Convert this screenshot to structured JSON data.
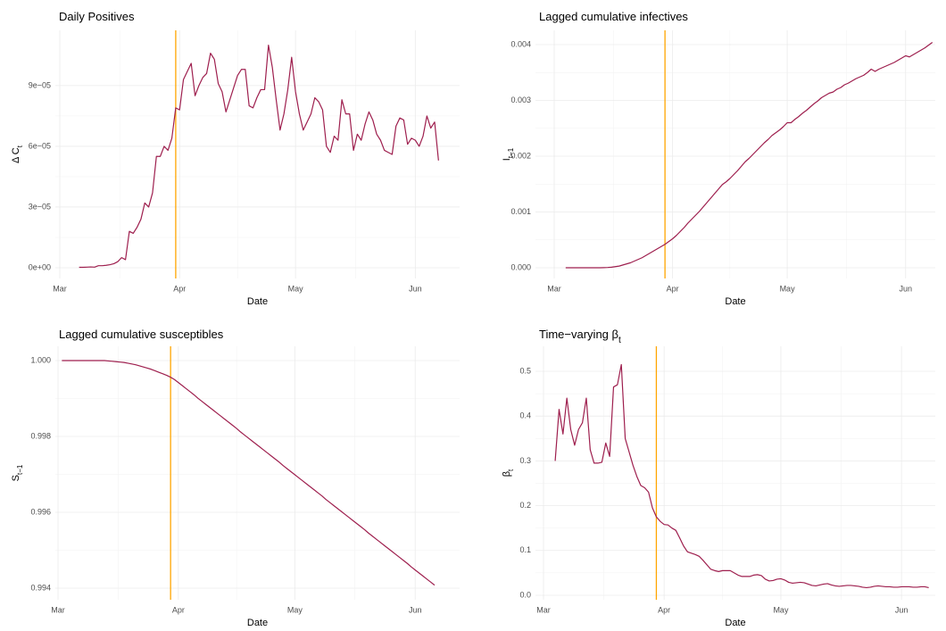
{
  "chart_data": [
    {
      "type": "line",
      "title": "Daily Positives",
      "xlabel": "Date",
      "ylabel": "Δ C",
      "ylabel_sub": "t",
      "categories": [
        "Mar",
        null,
        null,
        null,
        null,
        null,
        null,
        null,
        null,
        null,
        null,
        null,
        null,
        null,
        null,
        null,
        null,
        null,
        null,
        null,
        null,
        null,
        null,
        null,
        null,
        null,
        null,
        null,
        null,
        null,
        null,
        "Apr",
        null,
        null,
        null,
        null,
        null,
        null,
        null,
        null,
        null,
        null,
        null,
        null,
        null,
        null,
        null,
        null,
        null,
        null,
        null,
        null,
        null,
        null,
        null,
        null,
        null,
        null,
        null,
        null,
        null,
        "May",
        null,
        null,
        null,
        null,
        null,
        null,
        null,
        null,
        null,
        null,
        null,
        null,
        null,
        null,
        null,
        null,
        null,
        null,
        null,
        null,
        null,
        null,
        null,
        null,
        null,
        null,
        null,
        null,
        null,
        null,
        "Jun",
        null,
        null,
        null,
        null,
        null,
        null,
        null,
        null
      ],
      "values": [
        null,
        null,
        null,
        null,
        null,
        2e-07,
        2e-07,
        3e-07,
        4e-07,
        3e-07,
        1e-06,
        1e-06,
        1.2e-06,
        1.5e-06,
        2e-06,
        3e-06,
        5e-06,
        4e-06,
        1.8e-05,
        1.7e-05,
        2e-05,
        2.4e-05,
        3.2e-05,
        3e-05,
        3.7e-05,
        5.5e-05,
        5.5e-05,
        6e-05,
        5.8e-05,
        6.4e-05,
        7.9e-05,
        7.8e-05,
        9.3e-05,
        9.7e-05,
        0.000101,
        8.5e-05,
        9e-05,
        9.4e-05,
        9.6e-05,
        0.000106,
        0.000103,
        9.1e-05,
        8.7e-05,
        7.7e-05,
        8.3e-05,
        8.9e-05,
        9.5e-05,
        9.8e-05,
        9.8e-05,
        8e-05,
        7.9e-05,
        8.4e-05,
        8.8e-05,
        8.8e-05,
        0.00011,
        9.9e-05,
        8.3e-05,
        6.8e-05,
        7.6e-05,
        8.8e-05,
        0.000104,
        8.7e-05,
        7.6e-05,
        6.8e-05,
        7.2e-05,
        7.6e-05,
        8.4e-05,
        8.2e-05,
        7.8e-05,
        6e-05,
        5.7e-05,
        6.5e-05,
        6.3e-05,
        8.3e-05,
        7.6e-05,
        7.6e-05,
        5.8e-05,
        6.6e-05,
        6.3e-05,
        7.1e-05,
        7.7e-05,
        7.3e-05,
        6.6e-05,
        6.3e-05,
        5.8e-05,
        5.7e-05,
        5.6e-05,
        7e-05,
        7.4e-05,
        7.3e-05,
        6.1e-05,
        6.4e-05,
        6.3e-05,
        6e-05,
        6.5e-05,
        7.5e-05,
        6.9e-05,
        7.2e-05,
        5.3e-05,
        null,
        null
      ],
      "color": "#9e1f4e",
      "marker_line": {
        "at_category": 30,
        "color": "#ffa500"
      },
      "ylim": [
        -5.3e-06,
        0.0001173
      ],
      "yticks": [
        {
          "value": 0,
          "label": "0e+00"
        },
        {
          "value": 3e-05,
          "label": "3e−05"
        },
        {
          "value": 6e-05,
          "label": "6e−05"
        },
        {
          "value": 9e-05,
          "label": "9e−05"
        }
      ],
      "grid": true
    },
    {
      "type": "line",
      "title": "Lagged cumulative infectives",
      "xlabel": "Date",
      "ylabel": "I",
      "ylabel_sub": "t−1",
      "categories": [
        "Mar",
        null,
        null,
        null,
        null,
        null,
        null,
        null,
        null,
        null,
        null,
        null,
        null,
        null,
        null,
        null,
        null,
        null,
        null,
        null,
        null,
        null,
        null,
        null,
        null,
        null,
        null,
        null,
        null,
        null,
        null,
        "Apr",
        null,
        null,
        null,
        null,
        null,
        null,
        null,
        null,
        null,
        null,
        null,
        null,
        null,
        null,
        null,
        null,
        null,
        null,
        null,
        null,
        null,
        null,
        null,
        null,
        null,
        null,
        null,
        null,
        null,
        "May",
        null,
        null,
        null,
        null,
        null,
        null,
        null,
        null,
        null,
        null,
        null,
        null,
        null,
        null,
        null,
        null,
        null,
        null,
        null,
        null,
        null,
        null,
        null,
        null,
        null,
        null,
        null,
        null,
        null,
        null,
        "Jun",
        null,
        null,
        null,
        null,
        null,
        null,
        null,
        null
      ],
      "values": [
        null,
        null,
        null,
        0,
        0,
        0,
        0,
        0,
        0,
        0,
        0,
        0,
        0,
        2e-06,
        5e-06,
        1e-05,
        2e-05,
        3e-05,
        5e-05,
        7e-05,
        9e-05,
        0.00012,
        0.00015,
        0.00018,
        0.00022,
        0.00026,
        0.0003,
        0.00034,
        0.00038,
        0.00042,
        0.00047,
        0.00052,
        0.00058,
        0.00065,
        0.00072,
        0.0008,
        0.00087,
        0.00094,
        0.00101,
        0.00109,
        0.00117,
        0.00125,
        0.00133,
        0.00141,
        0.00149,
        0.00154,
        0.0016,
        0.00167,
        0.00174,
        0.00182,
        0.0019,
        0.00196,
        0.00203,
        0.0021,
        0.00217,
        0.00224,
        0.0023,
        0.00237,
        0.00242,
        0.00247,
        0.00253,
        0.0026,
        0.0026,
        0.00266,
        0.00271,
        0.00277,
        0.00282,
        0.00288,
        0.00294,
        0.00299,
        0.00305,
        0.00309,
        0.00313,
        0.00315,
        0.0032,
        0.00323,
        0.00328,
        0.00331,
        0.00335,
        0.00339,
        0.00342,
        0.00345,
        0.0035,
        0.00356,
        0.00352,
        0.00356,
        0.00359,
        0.00362,
        0.00365,
        0.00368,
        0.00372,
        0.00376,
        0.0038,
        0.00378,
        0.00382,
        0.00386,
        0.0039,
        0.00394,
        0.00399,
        0.00404,
        null
      ],
      "color": "#9e1f4e",
      "marker_line": {
        "at_category": 29,
        "color": "#ffa500"
      },
      "ylim": [
        -0.000192,
        0.004256
      ],
      "yticks": [
        {
          "value": 0,
          "label": "0.000"
        },
        0.001,
        0.002,
        0.003,
        0.004
      ],
      "grid": true
    },
    {
      "type": "line",
      "title": "Lagged cumulative susceptibles",
      "xlabel": "Date",
      "ylabel": "S",
      "ylabel_sub": "t−1",
      "categories": [
        "Mar",
        null,
        null,
        null,
        null,
        null,
        null,
        null,
        null,
        null,
        null,
        null,
        null,
        null,
        null,
        null,
        null,
        null,
        null,
        null,
        null,
        null,
        null,
        null,
        null,
        null,
        null,
        null,
        null,
        null,
        null,
        "Apr",
        null,
        null,
        null,
        null,
        null,
        null,
        null,
        null,
        null,
        null,
        null,
        null,
        null,
        null,
        null,
        null,
        null,
        null,
        null,
        null,
        null,
        null,
        null,
        null,
        null,
        null,
        null,
        null,
        null,
        "May",
        null,
        null,
        null,
        null,
        null,
        null,
        null,
        null,
        null,
        null,
        null,
        null,
        null,
        null,
        null,
        null,
        null,
        null,
        null,
        null,
        null,
        null,
        null,
        null,
        null,
        null,
        null,
        null,
        null,
        null,
        "Jun",
        null,
        null,
        null,
        null,
        null,
        null,
        null,
        null
      ],
      "values": [
        null,
        1,
        1,
        1,
        1,
        1,
        1,
        1,
        1,
        1,
        1,
        1,
        1,
        0.99999,
        0.99998,
        0.99997,
        0.99996,
        0.99995,
        0.99993,
        0.99991,
        0.99989,
        0.99986,
        0.99983,
        0.9998,
        0.99977,
        0.99973,
        0.99969,
        0.99965,
        0.99961,
        0.99956,
        0.9995,
        0.99942,
        0.99934,
        0.99926,
        0.99918,
        0.9991,
        0.99901,
        0.99893,
        0.99885,
        0.99877,
        0.99869,
        0.99861,
        0.99853,
        0.99845,
        0.99837,
        0.99829,
        0.99821,
        0.99812,
        0.99804,
        0.99796,
        0.99788,
        0.9978,
        0.99772,
        0.99764,
        0.99756,
        0.99748,
        0.9974,
        0.99732,
        0.99723,
        0.99715,
        0.99707,
        0.99699,
        0.99691,
        0.99683,
        0.99675,
        0.99667,
        0.99659,
        0.99651,
        0.99643,
        0.99634,
        0.99626,
        0.99618,
        0.9961,
        0.99602,
        0.99594,
        0.99586,
        0.99578,
        0.9957,
        0.99562,
        0.99554,
        0.99545,
        0.99537,
        0.99529,
        0.99521,
        0.99513,
        0.99505,
        0.99497,
        0.99489,
        0.99481,
        0.99473,
        0.99465,
        0.99456,
        0.99448,
        0.9944,
        0.99432,
        0.99424,
        0.99416,
        0.99408,
        null,
        null,
        null
      ],
      "color": "#9e1f4e",
      "marker_line": {
        "at_category": 29,
        "color": "#ffa500"
      },
      "ylim": [
        0.993694,
        1.000376
      ],
      "yticks": [
        0.994,
        0.996,
        0.998,
        {
          "value": 1,
          "label": "1.000"
        }
      ],
      "grid": true
    },
    {
      "type": "line",
      "title": "Time−varying β",
      "title_sub": "t",
      "xlabel": "Date",
      "ylabel": "β",
      "ylabel_sub": "t",
      "categories": [
        "Mar",
        null,
        null,
        null,
        null,
        null,
        null,
        null,
        null,
        null,
        null,
        null,
        null,
        null,
        null,
        null,
        null,
        null,
        null,
        null,
        null,
        null,
        null,
        null,
        null,
        null,
        null,
        null,
        null,
        null,
        null,
        "Apr",
        null,
        null,
        null,
        null,
        null,
        null,
        null,
        null,
        null,
        null,
        null,
        null,
        null,
        null,
        null,
        null,
        null,
        null,
        null,
        null,
        null,
        null,
        null,
        null,
        null,
        null,
        null,
        null,
        null,
        "May",
        null,
        null,
        null,
        null,
        null,
        null,
        null,
        null,
        null,
        null,
        null,
        null,
        null,
        null,
        null,
        null,
        null,
        null,
        null,
        null,
        null,
        null,
        null,
        null,
        null,
        null,
        null,
        null,
        null,
        null,
        "Jun",
        null,
        null,
        null,
        null,
        null,
        null,
        null,
        null
      ],
      "values": [
        null,
        null,
        null,
        0.3,
        0.415,
        0.36,
        0.44,
        0.37,
        0.335,
        0.37,
        0.385,
        0.44,
        0.325,
        0.295,
        0.295,
        0.297,
        0.34,
        0.31,
        0.465,
        0.47,
        0.515,
        0.35,
        0.32,
        0.29,
        0.265,
        0.245,
        0.24,
        0.23,
        0.195,
        0.175,
        0.165,
        0.158,
        0.157,
        0.15,
        0.145,
        0.128,
        0.11,
        0.097,
        0.094,
        0.091,
        0.087,
        0.078,
        0.068,
        0.058,
        0.055,
        0.053,
        0.055,
        0.055,
        0.055,
        0.05,
        0.045,
        0.042,
        0.042,
        0.042,
        0.045,
        0.046,
        0.044,
        0.036,
        0.032,
        0.033,
        0.036,
        0.037,
        0.034,
        0.029,
        0.027,
        0.028,
        0.029,
        0.028,
        0.025,
        0.022,
        0.021,
        0.023,
        0.025,
        0.026,
        0.023,
        0.021,
        0.02,
        0.021,
        0.022,
        0.022,
        0.021,
        0.02,
        0.018,
        0.017,
        0.018,
        0.02,
        0.021,
        0.02,
        0.019,
        0.019,
        0.018,
        0.018,
        0.019,
        0.019,
        0.019,
        0.018,
        0.018,
        0.019,
        0.019,
        0.017,
        null
      ],
      "color": "#9e1f4e",
      "marker_line": {
        "at_category": 29,
        "color": "#ffa500"
      },
      "ylim": [
        -0.01,
        0.5558
      ],
      "yticks": [
        {
          "value": 0,
          "label": "0.0"
        },
        0.1,
        0.2,
        0.3,
        0.4,
        0.5
      ],
      "grid": true
    }
  ]
}
